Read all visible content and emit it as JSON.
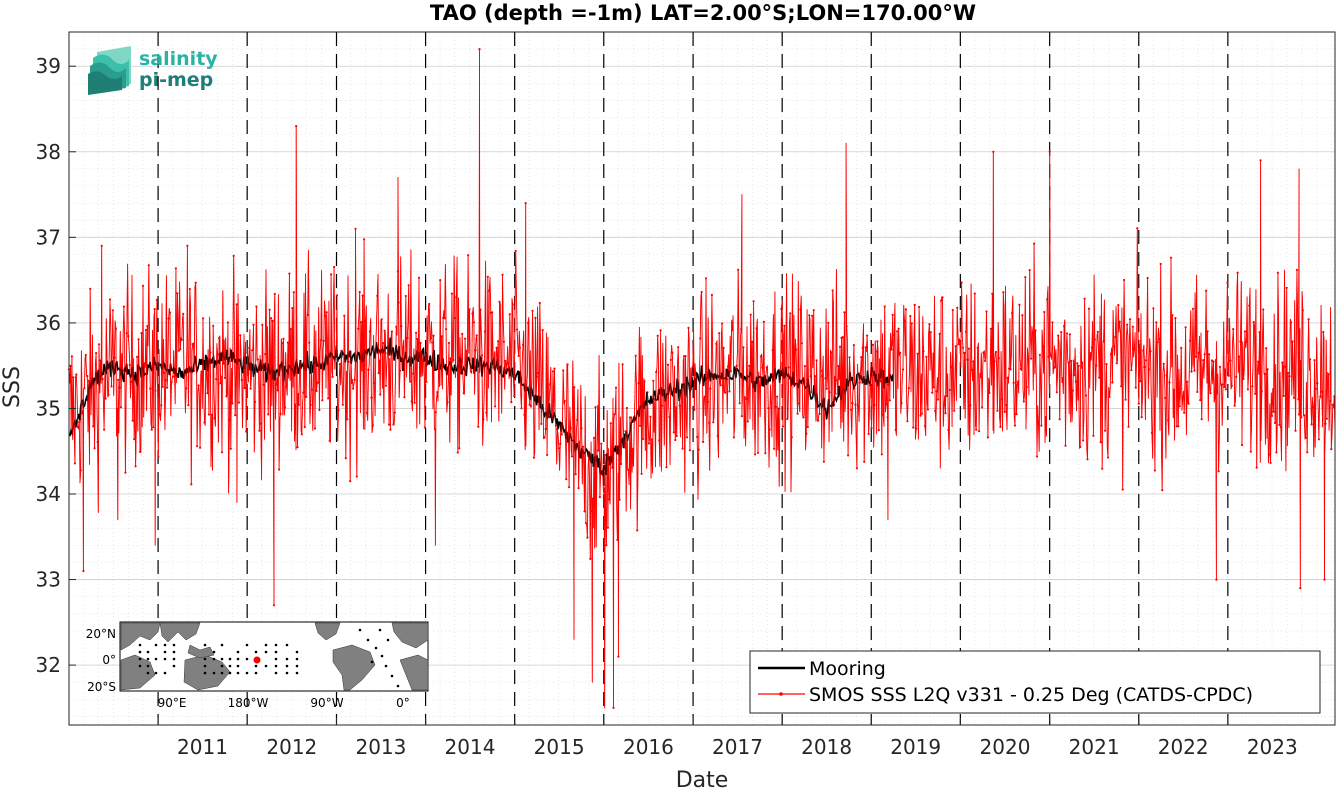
{
  "logo": {
    "line1": "salinity",
    "line2": "pi-mep",
    "color1": "#2ab3a4",
    "color2": "#1d7f78"
  },
  "chart_data": {
    "type": "line",
    "title": "TAO (depth =-1m) LAT=2.00°S;LON=170.00°W",
    "xlabel": "Date",
    "ylabel": "SSS",
    "xlim": [
      "2010-01-01",
      "2024-03-15"
    ],
    "ylim": [
      31.3,
      39.4
    ],
    "grid": true,
    "x_tick_labels": [
      "2011",
      "2012",
      "2013",
      "2014",
      "2015",
      "2016",
      "2017",
      "2018",
      "2019",
      "2020",
      "2021",
      "2022",
      "2023"
    ],
    "y_tick_labels": [
      "32",
      "33",
      "34",
      "35",
      "36",
      "37",
      "38",
      "39"
    ],
    "year_boundaries_dashed": [
      "2011",
      "2012",
      "2013",
      "2014",
      "2015",
      "2016",
      "2017",
      "2018",
      "2019",
      "2020",
      "2021",
      "2022",
      "2023"
    ],
    "legend_position": "bottom-right",
    "series": [
      {
        "name": "Mooring",
        "color": "#000000",
        "style": "solid-line",
        "x": [
          "2010-01-01",
          "2010-04-01",
          "2010-07-01",
          "2010-10-01",
          "2011-01-01",
          "2011-04-01",
          "2011-07-01",
          "2011-10-01",
          "2012-01-01",
          "2012-04-01",
          "2012-07-01",
          "2012-10-01",
          "2013-01-01",
          "2013-04-01",
          "2013-07-01",
          "2013-10-01",
          "2014-01-01",
          "2014-04-01",
          "2014-07-01",
          "2014-10-01",
          "2015-01-01",
          "2015-04-01",
          "2015-07-01",
          "2015-10-01",
          "2016-01-01",
          "2016-04-01",
          "2016-07-01",
          "2016-10-01",
          "2017-01-01",
          "2017-04-01",
          "2017-07-01",
          "2017-10-01",
          "2018-01-01",
          "2018-04-01",
          "2018-07-01",
          "2018-10-01",
          "2019-01-01",
          "2019-04-01"
        ],
        "values": [
          34.6,
          35.3,
          35.5,
          35.4,
          35.5,
          35.4,
          35.5,
          35.6,
          35.5,
          35.4,
          35.5,
          35.5,
          35.6,
          35.6,
          35.7,
          35.6,
          35.6,
          35.5,
          35.5,
          35.5,
          35.4,
          35.1,
          34.8,
          34.5,
          34.3,
          34.7,
          35.1,
          35.2,
          35.3,
          35.4,
          35.4,
          35.3,
          35.4,
          35.3,
          35.0,
          35.3,
          35.4,
          35.3
        ]
      },
      {
        "name": "SMOS SSS L2Q v331 - 0.25 Deg (CATDS-CPDC)",
        "color": "#ff0000",
        "style": "line-with-dot-markers",
        "baseline_x": [
          "2010-01-01",
          "2010-07-01",
          "2011-01-01",
          "2011-07-01",
          "2012-01-01",
          "2012-07-01",
          "2013-01-01",
          "2013-07-01",
          "2014-01-01",
          "2014-07-01",
          "2015-01-01",
          "2015-04-01",
          "2015-07-01",
          "2015-10-01",
          "2016-01-01",
          "2016-04-01",
          "2016-07-01",
          "2017-01-01",
          "2017-07-01",
          "2018-01-01",
          "2018-07-01",
          "2019-01-01",
          "2019-07-01",
          "2020-01-01",
          "2020-07-01",
          "2021-01-01",
          "2021-07-01",
          "2022-01-01",
          "2022-07-01",
          "2023-01-01",
          "2023-07-01",
          "2024-03-15"
        ],
        "baseline_values": [
          34.9,
          35.4,
          35.5,
          35.5,
          35.4,
          35.5,
          35.5,
          35.6,
          35.6,
          35.6,
          35.5,
          35.2,
          34.8,
          34.4,
          34.2,
          34.7,
          35.0,
          35.2,
          35.4,
          35.4,
          35.4,
          35.4,
          35.4,
          35.4,
          35.5,
          35.5,
          35.5,
          35.5,
          35.4,
          35.5,
          35.5,
          35.4
        ],
        "spread": 0.55,
        "extremes": [
          {
            "x": "2010-03-01",
            "y": 33.1
          },
          {
            "x": "2010-05-15",
            "y": 36.9
          },
          {
            "x": "2010-07-20",
            "y": 33.7
          },
          {
            "x": "2010-12-20",
            "y": 33.4
          },
          {
            "x": "2011-05-01",
            "y": 36.9
          },
          {
            "x": "2011-11-20",
            "y": 33.9
          },
          {
            "x": "2012-04-20",
            "y": 32.7
          },
          {
            "x": "2012-07-20",
            "y": 38.3
          },
          {
            "x": "2013-03-20",
            "y": 37.1
          },
          {
            "x": "2013-09-10",
            "y": 37.7
          },
          {
            "x": "2014-02-10",
            "y": 33.4
          },
          {
            "x": "2014-08-10",
            "y": 39.2
          },
          {
            "x": "2015-02-15",
            "y": 37.4
          },
          {
            "x": "2015-09-01",
            "y": 32.3
          },
          {
            "x": "2015-11-15",
            "y": 31.8
          },
          {
            "x": "2016-01-05",
            "y": 31.5
          },
          {
            "x": "2016-02-10",
            "y": 31.5
          },
          {
            "x": "2016-03-01",
            "y": 32.1
          },
          {
            "x": "2017-07-20",
            "y": 37.5
          },
          {
            "x": "2018-09-20",
            "y": 38.1
          },
          {
            "x": "2019-03-10",
            "y": 33.7
          },
          {
            "x": "2020-05-15",
            "y": 38.0
          },
          {
            "x": "2021-01-01",
            "y": 38.0
          },
          {
            "x": "2022-11-15",
            "y": 33.0
          },
          {
            "x": "2023-05-15",
            "y": 37.9
          },
          {
            "x": "2023-10-20",
            "y": 37.8
          },
          {
            "x": "2023-10-25",
            "y": 32.9
          },
          {
            "x": "2024-02-01",
            "y": 33.0
          }
        ]
      }
    ]
  },
  "inset_map": {
    "y_tick_labels": [
      "20°N",
      "0°",
      "20°S"
    ],
    "x_tick_labels": [
      "90°E",
      "180°W",
      "90°W",
      "0°"
    ],
    "marker_color": "#ff0000",
    "land_color": "#808080",
    "ocean_color": "#ffffff"
  }
}
